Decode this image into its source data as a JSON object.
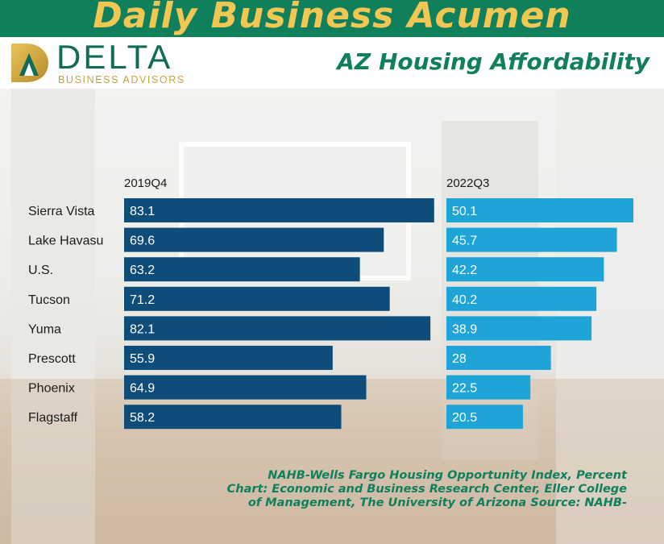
{
  "banner": {
    "title": "Daily Business Acumen"
  },
  "logo": {
    "word": "DELTA",
    "sub": "BUSINESS ADVISORS"
  },
  "subtitle": "AZ Housing Affordability",
  "colors": {
    "green": "#0f7f5c",
    "gold": "#f1c653",
    "series_2019": "#0e4d7a",
    "series_2022": "#1ea4d6"
  },
  "chart_data": {
    "type": "bar",
    "orientation": "horizontal",
    "categories": [
      "Sierra Vista",
      "Lake Havasu",
      "U.S.",
      "Tucson",
      "Yuma",
      "Prescott",
      "Phoenix",
      "Flagstaff"
    ],
    "series": [
      {
        "name": "2019Q4",
        "values": [
          83.1,
          69.6,
          63.2,
          71.2,
          82.1,
          55.9,
          64.9,
          58.2
        ]
      },
      {
        "name": "2022Q3",
        "values": [
          50.1,
          45.7,
          42.2,
          40.2,
          38.9,
          28,
          22.5,
          20.5
        ]
      }
    ],
    "data_labels": true,
    "legend": "column headers above each panel"
  },
  "source_note": {
    "line1": "NAHB-Wells Fargo Housing Opportunity Index, Percent",
    "line2": "Chart: Economic and Business Research Center, Eller College",
    "line3": "of Management, The University of Arizona  Source: NAHB-"
  }
}
